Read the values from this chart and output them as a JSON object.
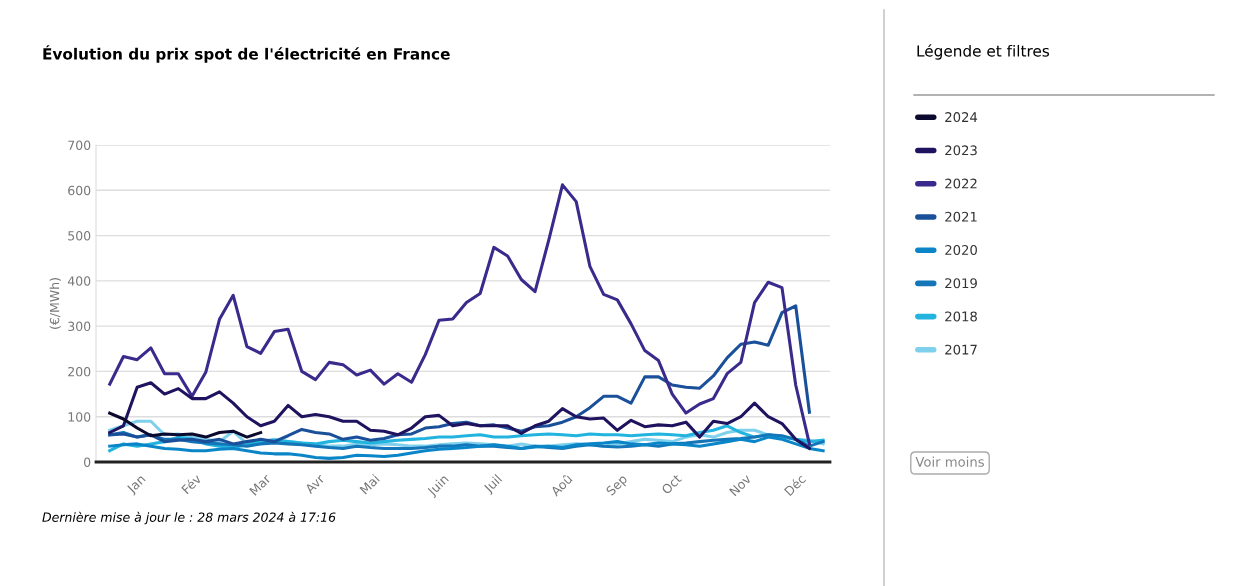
{
  "chart_data": {
    "type": "line",
    "title": "Évolution du prix spot de l'électricité en France",
    "ylabel": "(€/MWh)",
    "legend_title": "Légende et filtres",
    "annotations": [
      "Dernière mise à jour le : 28 mars 2024 à 17:16",
      "Voir moins"
    ],
    "categories": [
      null,
      null,
      "Jan",
      null,
      null,
      null,
      "Fév",
      null,
      null,
      null,
      null,
      "Mar",
      null,
      null,
      null,
      "Avr",
      null,
      null,
      null,
      "Mai",
      null,
      null,
      null,
      null,
      "Juin",
      null,
      null,
      null,
      "Juil",
      null,
      null,
      null,
      null,
      "Aoû",
      null,
      null,
      null,
      "Sep",
      null,
      null,
      null,
      "Oct",
      null,
      null,
      null,
      null,
      "Nov",
      null,
      null,
      null,
      "Déc",
      null,
      null
    ],
    "ylim": [
      0,
      700
    ],
    "yticks": [
      0,
      100,
      200,
      300,
      400,
      500,
      600,
      700
    ],
    "grid": "y",
    "legend": "right",
    "marker": "none",
    "line_style": "solid",
    "series": [
      {
        "name": "2024",
        "color": "#0b0a2e",
        "values": [
          108,
          95,
          75,
          58,
          62,
          60,
          62,
          55,
          65,
          68,
          55,
          65,
          null,
          null,
          null,
          null,
          null,
          null,
          null,
          null,
          null,
          null,
          null,
          null,
          null,
          null,
          null,
          null,
          null,
          null,
          null,
          null,
          null,
          null,
          null,
          null,
          null,
          null,
          null,
          null,
          null,
          null,
          null,
          null,
          null,
          null,
          null,
          null,
          null,
          null,
          null,
          null,
          null
        ]
      },
      {
        "name": "2023",
        "color": "#1f1360",
        "values": [
          65,
          80,
          165,
          175,
          150,
          162,
          140,
          140,
          155,
          130,
          100,
          80,
          90,
          125,
          100,
          105,
          100,
          90,
          90,
          70,
          68,
          60,
          75,
          100,
          103,
          80,
          85,
          80,
          80,
          80,
          63,
          80,
          90,
          118,
          100,
          95,
          97,
          70,
          92,
          78,
          82,
          80,
          88,
          55,
          90,
          85,
          100,
          130,
          100,
          85,
          50,
          30,
          null
        ]
      },
      {
        "name": "2022",
        "color": "#3a2a8c",
        "values": [
          172,
          233,
          226,
          252,
          195,
          195,
          145,
          198,
          315,
          368,
          255,
          240,
          288,
          293,
          200,
          182,
          220,
          215,
          192,
          203,
          172,
          195,
          176,
          237,
          313,
          316,
          352,
          372,
          474,
          455,
          403,
          376,
          490,
          612,
          575,
          432,
          370,
          358,
          305,
          246,
          224,
          150,
          108,
          128,
          140,
          195,
          220,
          352,
          397,
          385,
          170,
          40,
          null
        ]
      },
      {
        "name": "2021",
        "color": "#1a4f9a",
        "values": [
          60,
          62,
          55,
          60,
          45,
          48,
          50,
          45,
          50,
          40,
          45,
          50,
          45,
          58,
          72,
          65,
          62,
          50,
          55,
          48,
          52,
          60,
          62,
          75,
          78,
          85,
          88,
          80,
          82,
          75,
          68,
          78,
          80,
          88,
          100,
          120,
          145,
          145,
          130,
          188,
          188,
          170,
          165,
          163,
          190,
          230,
          260,
          265,
          258,
          330,
          345,
          110,
          null
        ]
      },
      {
        "name": "2020",
        "color": "#0a86c8",
        "values": [
          35,
          38,
          40,
          35,
          30,
          28,
          25,
          25,
          28,
          30,
          25,
          20,
          18,
          18,
          15,
          10,
          8,
          10,
          15,
          14,
          12,
          15,
          20,
          25,
          28,
          30,
          32,
          35,
          38,
          35,
          30,
          33,
          35,
          32,
          38,
          40,
          42,
          45,
          40,
          38,
          42,
          40,
          38,
          35,
          40,
          45,
          50,
          45,
          55,
          50,
          40,
          30,
          25
        ]
      },
      {
        "name": "2019",
        "color": "#1476b8",
        "values": [
          60,
          65,
          55,
          60,
          50,
          50,
          45,
          42,
          40,
          38,
          35,
          40,
          42,
          40,
          38,
          35,
          32,
          30,
          35,
          32,
          30,
          30,
          30,
          32,
          35,
          35,
          38,
          35,
          35,
          32,
          30,
          35,
          32,
          30,
          35,
          38,
          35,
          33,
          35,
          38,
          35,
          40,
          42,
          45,
          48,
          50,
          52,
          55,
          60,
          58,
          50,
          35,
          45
        ]
      },
      {
        "name": "2018",
        "color": "#22b4de",
        "values": [
          25,
          40,
          35,
          40,
          45,
          55,
          50,
          40,
          35,
          32,
          38,
          45,
          48,
          45,
          42,
          40,
          45,
          48,
          45,
          42,
          45,
          48,
          50,
          52,
          55,
          55,
          58,
          60,
          55,
          55,
          58,
          60,
          62,
          60,
          58,
          62,
          60,
          60,
          58,
          60,
          62,
          60,
          58,
          65,
          70,
          80,
          65,
          55,
          60,
          55,
          50,
          45,
          48
        ]
      },
      {
        "name": "2017",
        "color": "#7fd0ec",
        "values": [
          70,
          80,
          90,
          90,
          60,
          62,
          55,
          50,
          45,
          68,
          40,
          45,
          50,
          45,
          42,
          38,
          35,
          35,
          40,
          38,
          40,
          38,
          35,
          35,
          38,
          40,
          42,
          40,
          38,
          35,
          40,
          35,
          35,
          38,
          40,
          38,
          35,
          40,
          45,
          50,
          48,
          45,
          55,
          60,
          55,
          65,
          70,
          70,
          60,
          55,
          50,
          48,
          40
        ]
      }
    ]
  }
}
